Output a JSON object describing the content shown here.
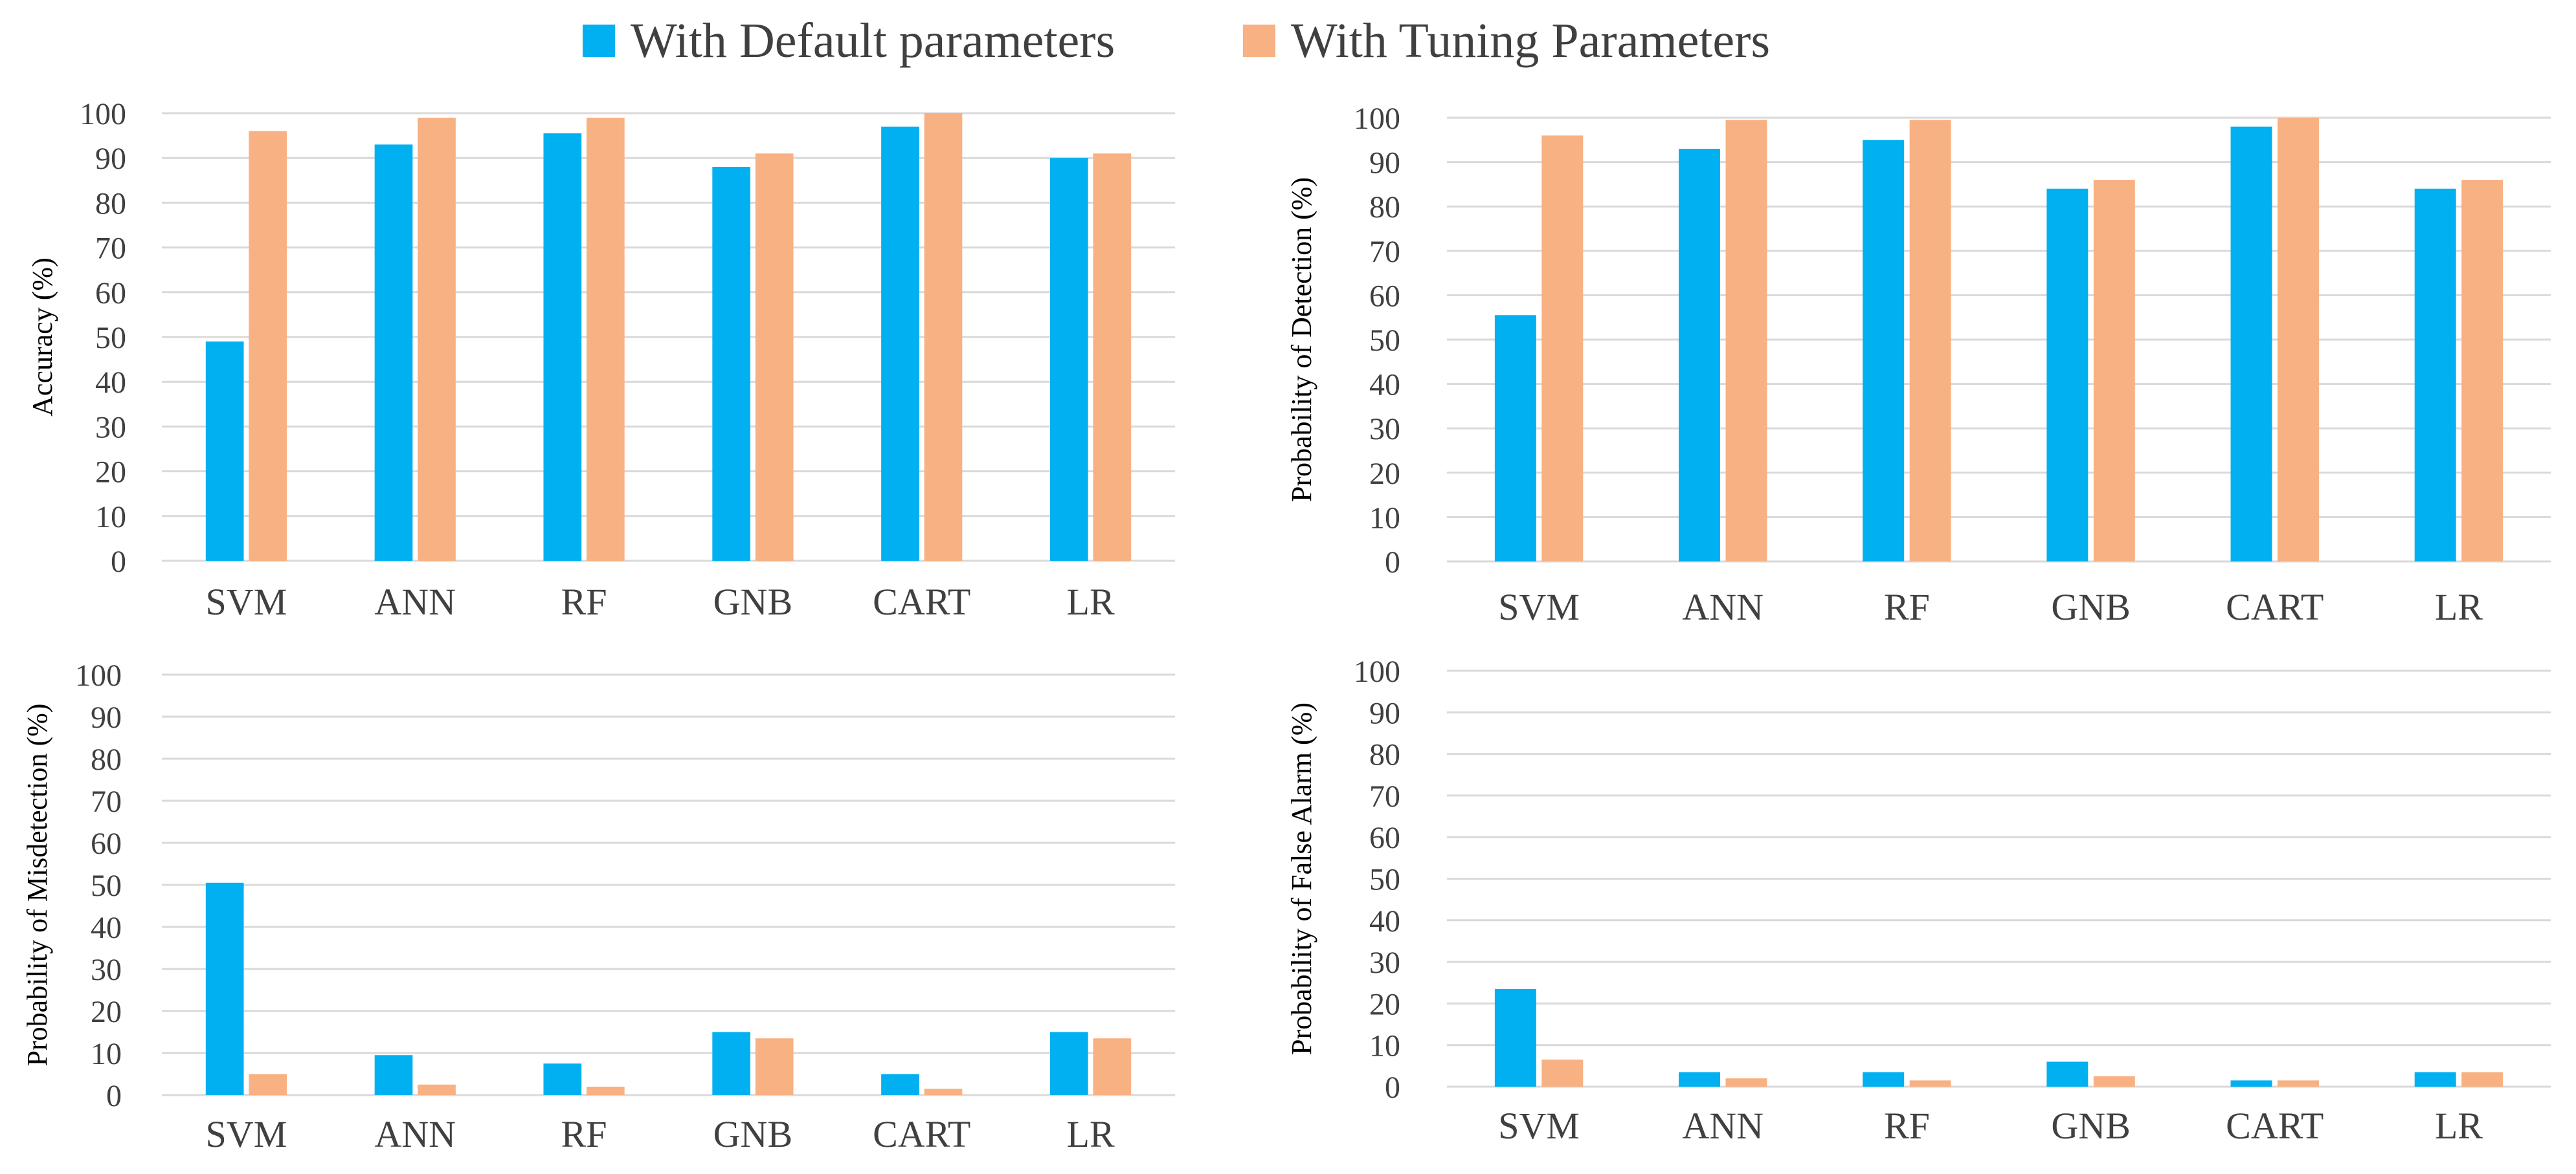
{
  "legend": {
    "default_label": "With Default parameters",
    "tuning_label": "With Tuning Parameters"
  },
  "colors": {
    "default": "#00B0F0",
    "tuning": "#F8B183",
    "grid": "#D9D9D9",
    "axis_text": "#404040"
  },
  "chart_data": [
    {
      "type": "bar",
      "title": "",
      "xlabel": "",
      "ylabel": "Accuracy (%)",
      "ylim": [
        0,
        100
      ],
      "yticks": [
        0,
        10,
        20,
        30,
        40,
        50,
        60,
        70,
        80,
        90,
        100
      ],
      "grid": true,
      "legend_position": "top-center",
      "categories": [
        "SVM",
        "ANN",
        "RF",
        "GNB",
        "CART",
        "LR"
      ],
      "series": [
        {
          "name": "With Default parameters",
          "values": [
            49,
            93,
            95.5,
            88,
            97,
            90
          ]
        },
        {
          "name": "With Tuning Parameters",
          "values": [
            96,
            99,
            99,
            91,
            100,
            91
          ]
        }
      ]
    },
    {
      "type": "bar",
      "title": "",
      "xlabel": "",
      "ylabel": "Probability of Detection (%)",
      "ylim": [
        0,
        100
      ],
      "yticks": [
        0,
        10,
        20,
        30,
        40,
        50,
        60,
        70,
        80,
        90,
        100
      ],
      "grid": true,
      "legend_position": "top-center",
      "categories": [
        "SVM",
        "ANN",
        "RF",
        "GNB",
        "CART",
        "LR"
      ],
      "series": [
        {
          "name": "With Default parameters",
          "values": [
            55.5,
            93,
            95,
            84,
            98,
            84
          ]
        },
        {
          "name": "With Tuning Parameters",
          "values": [
            96,
            99.5,
            99.5,
            86,
            100,
            86
          ]
        }
      ]
    },
    {
      "type": "bar",
      "title": "",
      "xlabel": "",
      "ylabel": "Probability of Misdetection (%)",
      "ylim": [
        0,
        100
      ],
      "yticks": [
        0,
        10,
        20,
        30,
        40,
        50,
        60,
        70,
        80,
        90,
        100
      ],
      "grid": true,
      "legend_position": "top-center",
      "categories": [
        "SVM",
        "ANN",
        "RF",
        "GNB",
        "CART",
        "LR"
      ],
      "series": [
        {
          "name": "With Default parameters",
          "values": [
            50.5,
            9.5,
            7.5,
            15,
            5,
            15
          ]
        },
        {
          "name": "With Tuning Parameters",
          "values": [
            5,
            2.5,
            2,
            13.5,
            1.5,
            13.5
          ]
        }
      ]
    },
    {
      "type": "bar",
      "title": "",
      "xlabel": "",
      "ylabel": "Probability of False Alarm (%)",
      "ylim": [
        0,
        100
      ],
      "yticks": [
        0,
        10,
        20,
        30,
        40,
        50,
        60,
        70,
        80,
        90,
        100
      ],
      "grid": true,
      "legend_position": "top-center",
      "categories": [
        "SVM",
        "ANN",
        "RF",
        "GNB",
        "CART",
        "LR"
      ],
      "series": [
        {
          "name": "With Default parameters",
          "values": [
            23.5,
            3.5,
            3.5,
            6,
            1.5,
            3.5
          ]
        },
        {
          "name": "With Tuning Parameters",
          "values": [
            6.5,
            2,
            1.5,
            2.5,
            1.5,
            3.5
          ]
        }
      ]
    }
  ]
}
